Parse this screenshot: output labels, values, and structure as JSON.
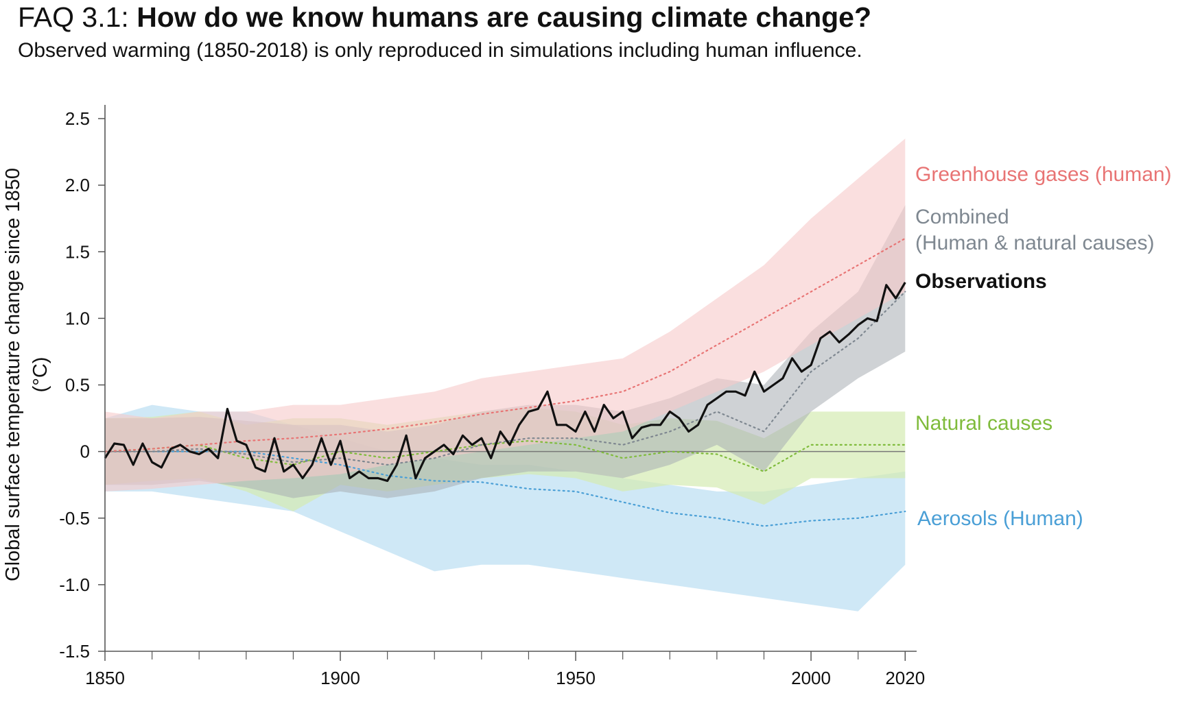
{
  "header": {
    "faq_label": "FAQ 3.1:",
    "question": "How do we know humans are causing climate change?",
    "subtitle": "Observed warming (1850-2018) is only reproduced in simulations including human influence."
  },
  "chart_data": {
    "type": "line",
    "ylabel": "Global surface temperature change since 1850 (°C)",
    "ylabel_lines": [
      "Global surface temperature change since 1850",
      "(°C)"
    ],
    "xlabel": "",
    "xlim": [
      1850,
      2022
    ],
    "ylim": [
      -1.5,
      2.5
    ],
    "x_ticks": [
      1850,
      1900,
      1950,
      2000,
      2020
    ],
    "x_minor_ticks": [
      1860,
      1870,
      1880,
      1890,
      1910,
      1920,
      1930,
      1940,
      1960,
      1970,
      1980,
      1990,
      2010
    ],
    "y_ticks": [
      2.5,
      2.0,
      1.5,
      1.0,
      0.5,
      0,
      -0.5,
      -1.0,
      -1.5
    ],
    "y_tick_labels": [
      "2.5",
      "2.0",
      "1.5",
      "1.0",
      "0.5",
      "0",
      "-0.5",
      "-1.0",
      "-1.5"
    ],
    "zero_line": true,
    "grid": false,
    "legend": "inline labels at right end of series",
    "series": [
      {
        "name": "Aerosols (Human)",
        "color": "#4a9fd6",
        "band_color": "#bfe0f3",
        "style": "dotted",
        "x": [
          1850,
          1860,
          1870,
          1880,
          1890,
          1900,
          1910,
          1920,
          1930,
          1940,
          1950,
          1960,
          1970,
          1980,
          1990,
          2000,
          2010,
          2020
        ],
        "values": [
          0.0,
          0.0,
          0.0,
          0.0,
          -0.05,
          -0.1,
          -0.18,
          -0.22,
          -0.23,
          -0.28,
          -0.3,
          -0.38,
          -0.46,
          -0.5,
          -0.56,
          -0.52,
          -0.5,
          -0.45
        ],
        "lower": [
          -0.3,
          -0.3,
          -0.35,
          -0.4,
          -0.45,
          -0.6,
          -0.75,
          -0.9,
          -0.85,
          -0.85,
          -0.9,
          -0.95,
          -1.0,
          -1.05,
          -1.1,
          -1.15,
          -1.2,
          -0.85
        ],
        "upper": [
          0.25,
          0.35,
          0.3,
          0.3,
          0.2,
          0.1,
          0.0,
          -0.05,
          -0.1,
          -0.1,
          -0.15,
          -0.2,
          -0.25,
          -0.3,
          -0.3,
          -0.25,
          -0.2,
          -0.15
        ]
      },
      {
        "name": "Natural causes",
        "color": "#7fbb3b",
        "band_color": "#d4ebb2",
        "style": "dotted",
        "x": [
          1850,
          1860,
          1870,
          1880,
          1890,
          1900,
          1910,
          1920,
          1930,
          1940,
          1950,
          1960,
          1970,
          1980,
          1990,
          2000,
          2010,
          2020
        ],
        "values": [
          0.0,
          0.02,
          0.05,
          -0.05,
          -0.1,
          0.0,
          -0.05,
          0.0,
          0.05,
          0.08,
          0.05,
          -0.05,
          0.0,
          -0.02,
          -0.15,
          0.05,
          0.05,
          0.05
        ],
        "lower": [
          -0.25,
          -0.22,
          -0.2,
          -0.3,
          -0.45,
          -0.25,
          -0.3,
          -0.25,
          -0.2,
          -0.17,
          -0.2,
          -0.3,
          -0.25,
          -0.27,
          -0.4,
          -0.2,
          -0.2,
          -0.2
        ],
        "upper": [
          0.25,
          0.26,
          0.3,
          0.2,
          0.25,
          0.25,
          0.2,
          0.25,
          0.3,
          0.33,
          0.3,
          0.2,
          0.25,
          0.23,
          0.1,
          0.3,
          0.3,
          0.3
        ]
      },
      {
        "name": "Combined\n(Human & natural causes)",
        "color": "#7e8790",
        "band_color": "#a8adb2",
        "style": "dotted",
        "x": [
          1850,
          1860,
          1870,
          1880,
          1890,
          1900,
          1910,
          1920,
          1930,
          1940,
          1950,
          1960,
          1970,
          1980,
          1990,
          2000,
          2010,
          2020
        ],
        "values": [
          0.0,
          0.0,
          0.02,
          -0.02,
          -0.08,
          -0.05,
          -0.1,
          -0.05,
          0.05,
          0.1,
          0.1,
          0.05,
          0.15,
          0.3,
          0.15,
          0.6,
          0.85,
          1.2
        ],
        "lower": [
          -0.25,
          -0.25,
          -0.22,
          -0.27,
          -0.35,
          -0.3,
          -0.35,
          -0.3,
          -0.2,
          -0.15,
          -0.15,
          -0.2,
          -0.1,
          0.05,
          -0.15,
          0.3,
          0.55,
          0.75
        ],
        "upper": [
          0.25,
          0.25,
          0.26,
          0.23,
          0.2,
          0.2,
          0.15,
          0.2,
          0.3,
          0.35,
          0.35,
          0.3,
          0.4,
          0.55,
          0.5,
          0.9,
          1.2,
          1.85
        ]
      },
      {
        "name": "Greenhouse gases (human)",
        "color": "#e87474",
        "band_color": "#f6c9c9",
        "style": "dotted",
        "x": [
          1850,
          1860,
          1870,
          1880,
          1890,
          1900,
          1910,
          1920,
          1930,
          1940,
          1950,
          1960,
          1970,
          1980,
          1990,
          2000,
          2010,
          2020
        ],
        "values": [
          0.0,
          0.02,
          0.05,
          0.08,
          0.1,
          0.13,
          0.17,
          0.22,
          0.28,
          0.33,
          0.38,
          0.45,
          0.6,
          0.8,
          1.0,
          1.2,
          1.4,
          1.6
        ],
        "lower": [
          -0.3,
          -0.28,
          -0.25,
          -0.22,
          -0.2,
          -0.17,
          -0.1,
          -0.05,
          0.0,
          0.05,
          0.1,
          0.15,
          0.3,
          0.45,
          0.6,
          0.8,
          1.0,
          1.2
        ],
        "upper": [
          0.3,
          0.25,
          0.3,
          0.3,
          0.35,
          0.35,
          0.4,
          0.45,
          0.55,
          0.6,
          0.65,
          0.7,
          0.9,
          1.15,
          1.4,
          1.75,
          2.05,
          2.35
        ]
      },
      {
        "name": "Observations",
        "color": "#111111",
        "style": "solid",
        "x": [
          1850,
          1852,
          1854,
          1856,
          1858,
          1860,
          1862,
          1864,
          1866,
          1868,
          1870,
          1872,
          1874,
          1876,
          1878,
          1880,
          1882,
          1884,
          1886,
          1888,
          1890,
          1892,
          1894,
          1896,
          1898,
          1900,
          1902,
          1904,
          1906,
          1908,
          1910,
          1912,
          1914,
          1916,
          1918,
          1920,
          1922,
          1924,
          1926,
          1928,
          1930,
          1932,
          1934,
          1936,
          1938,
          1940,
          1942,
          1944,
          1946,
          1948,
          1950,
          1952,
          1954,
          1956,
          1958,
          1960,
          1962,
          1964,
          1966,
          1968,
          1970,
          1972,
          1974,
          1976,
          1978,
          1980,
          1982,
          1984,
          1986,
          1988,
          1990,
          1992,
          1994,
          1996,
          1998,
          2000,
          2002,
          2004,
          2006,
          2008,
          2010,
          2012,
          2014,
          2016,
          2018,
          2020
        ],
        "values": [
          -0.05,
          0.06,
          0.05,
          -0.1,
          0.06,
          -0.08,
          -0.12,
          0.02,
          0.05,
          0.0,
          -0.02,
          0.02,
          -0.05,
          0.32,
          0.08,
          0.05,
          -0.12,
          -0.15,
          0.1,
          -0.15,
          -0.1,
          -0.2,
          -0.1,
          0.1,
          -0.1,
          0.08,
          -0.2,
          -0.15,
          -0.2,
          -0.2,
          -0.22,
          -0.1,
          0.12,
          -0.2,
          -0.05,
          0.0,
          0.05,
          -0.02,
          0.12,
          0.05,
          0.1,
          -0.05,
          0.15,
          0.05,
          0.2,
          0.3,
          0.32,
          0.45,
          0.2,
          0.2,
          0.15,
          0.3,
          0.15,
          0.35,
          0.25,
          0.3,
          0.1,
          0.18,
          0.2,
          0.2,
          0.3,
          0.25,
          0.15,
          0.2,
          0.35,
          0.4,
          0.45,
          0.45,
          0.42,
          0.6,
          0.45,
          0.5,
          0.55,
          0.7,
          0.6,
          0.65,
          0.85,
          0.9,
          0.82,
          0.88,
          0.95,
          1.0,
          0.98,
          1.25,
          1.15,
          1.27
        ]
      }
    ]
  }
}
